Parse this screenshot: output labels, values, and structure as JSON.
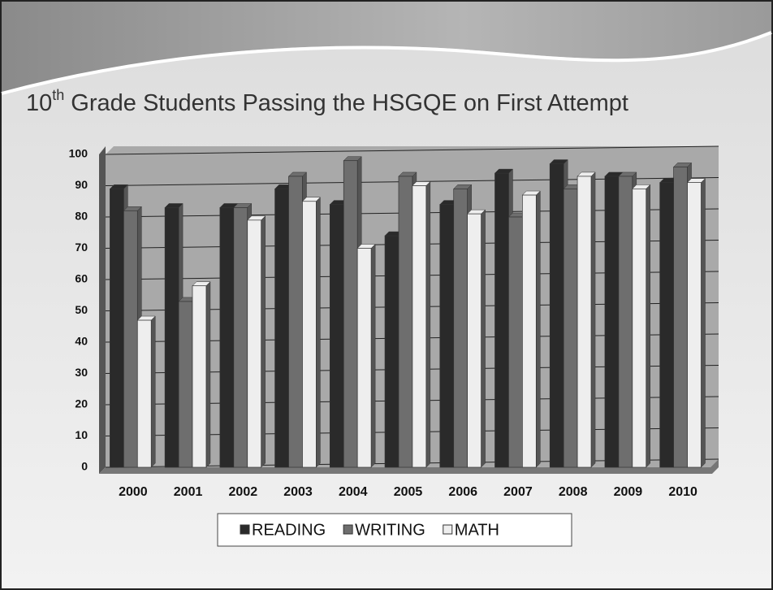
{
  "chart_data": {
    "type": "bar",
    "title": {
      "number": "10",
      "superscript": "th",
      "text": "Grade Students Passing the HSGQE on First Attempt"
    },
    "categories": [
      "2000",
      "2001",
      "2002",
      "2003",
      "2004",
      "2005",
      "2006",
      "2007",
      "2008",
      "2009",
      "2010"
    ],
    "series": [
      {
        "name": "READING",
        "color": "#2a2a2a",
        "values": [
          89,
          83,
          83,
          89,
          84,
          74,
          84,
          94,
          97,
          93,
          91
        ]
      },
      {
        "name": "WRITING",
        "color": "#6e6e6e",
        "values": [
          82,
          53,
          83,
          93,
          98,
          93,
          89,
          80,
          89,
          93,
          96
        ]
      },
      {
        "name": "MATH",
        "color": "#eeeeee",
        "values": [
          47,
          58,
          79,
          85,
          70,
          90,
          81,
          87,
          93,
          89,
          91
        ]
      }
    ],
    "ylim": [
      0,
      100
    ],
    "yticks": [
      0,
      10,
      20,
      30,
      40,
      50,
      60,
      70,
      80,
      90,
      100
    ],
    "grid": true,
    "legend": "bottom"
  }
}
